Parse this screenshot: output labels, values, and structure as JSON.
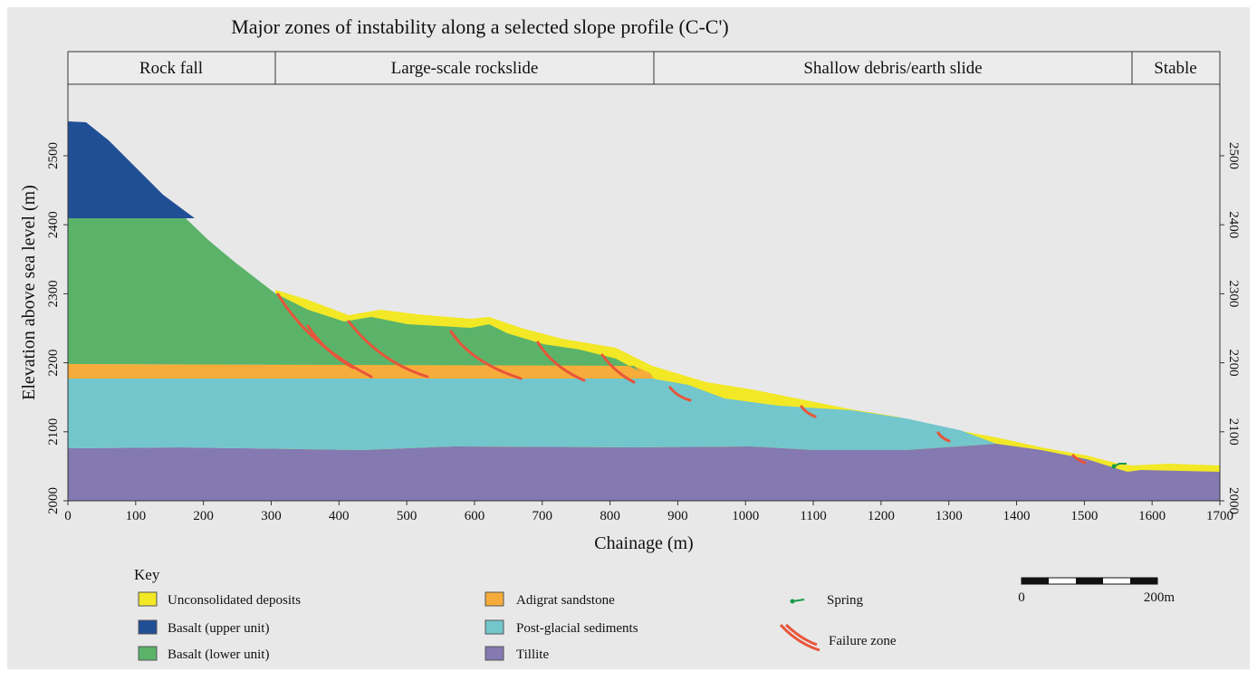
{
  "title": "Major zones of instability along a selected slope profile (C-C')",
  "zones": [
    "Rock fall",
    "Large-scale rockslide",
    "Shallow debris/earth slide",
    "Stable"
  ],
  "y_axis": {
    "label": "Elevation above sea level (m)",
    "ticks": [
      "2000",
      "2100",
      "2200",
      "2300",
      "2400",
      "2500"
    ]
  },
  "x_axis": {
    "label": "Chainage (m)",
    "ticks": [
      "0",
      "100",
      "200",
      "300",
      "400",
      "500",
      "600",
      "700",
      "800",
      "900",
      "1000",
      "1100",
      "1200",
      "1300",
      "1400",
      "1500",
      "1600",
      "1700"
    ]
  },
  "key": {
    "title": "Key",
    "items": [
      "Unconsolidated deposits",
      "Basalt (upper unit)",
      "Basalt (lower unit)",
      "Adigrat sandstone",
      "Post-glacial sediments",
      "Tillite",
      "Spring",
      "Failure zone"
    ]
  },
  "scale_bar": {
    "start": "0",
    "end": "200m"
  }
}
